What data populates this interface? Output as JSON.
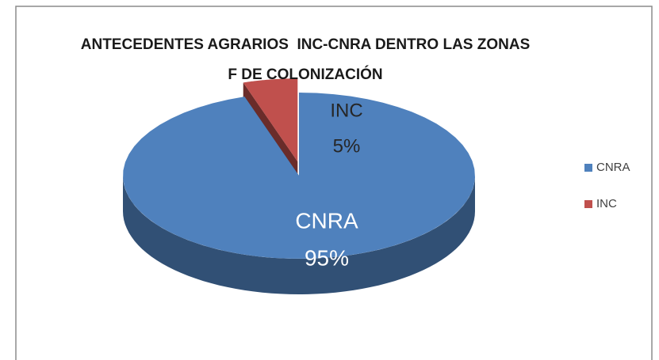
{
  "chart_data": {
    "type": "pie3d",
    "title": "ANTECEDENTES AGRARIOS  INC-CNRA DENTRO LAS ZONAS F DE COLONIZACIÓN",
    "categories": [
      "CNRA",
      "INC"
    ],
    "values": [
      95,
      5
    ],
    "value_labels": [
      "95%",
      "5%"
    ],
    "colors": [
      "#4f81bd",
      "#c0504d"
    ],
    "legend": "right"
  }
}
